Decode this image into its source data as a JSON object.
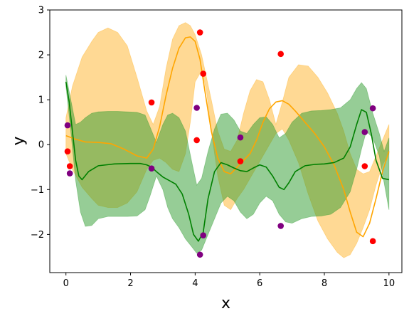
{
  "chart_data": {
    "type": "line",
    "title": "",
    "xlabel": "x",
    "ylabel": "y",
    "xlim": [
      -0.5,
      10.4
    ],
    "ylim": [
      -2.85,
      3.0
    ],
    "xticks": [
      0,
      2,
      4,
      6,
      8,
      10
    ],
    "xtick_labels": [
      "0",
      "2",
      "4",
      "6",
      "8",
      "10"
    ],
    "yticks": [
      -2,
      -1,
      0,
      1,
      2,
      3
    ],
    "ytick_labels": [
      "−2",
      "−1",
      "0",
      "1",
      "2",
      "3"
    ],
    "grid": false,
    "legend": "none",
    "series": [
      {
        "kind": "band",
        "color": "#ffa500",
        "opacity": 0.42,
        "x": [
          0.0,
          0.2,
          0.5,
          0.8,
          1.0,
          1.3,
          1.6,
          1.9,
          2.2,
          2.5,
          2.7,
          2.9,
          3.1,
          3.3,
          3.5,
          3.7,
          3.85,
          4.0,
          4.2,
          4.35,
          4.5,
          4.7,
          4.9,
          5.1,
          5.3,
          5.5,
          5.7,
          5.9,
          6.1,
          6.3,
          6.5,
          6.7,
          6.9,
          7.2,
          7.5,
          7.8,
          8.1,
          8.4,
          8.6,
          8.8,
          9.0,
          9.2,
          9.4,
          9.6,
          9.8,
          10.0
        ],
        "upper": [
          0.6,
          1.3,
          1.95,
          2.3,
          2.5,
          2.6,
          2.5,
          2.2,
          1.5,
          0.75,
          0.45,
          0.85,
          1.7,
          2.35,
          2.65,
          2.72,
          2.65,
          2.45,
          2.0,
          1.5,
          1.0,
          0.3,
          -0.1,
          -0.15,
          0.1,
          0.7,
          1.2,
          1.45,
          1.4,
          1.0,
          0.45,
          0.95,
          1.5,
          1.78,
          1.75,
          1.5,
          1.15,
          0.7,
          0.3,
          -0.2,
          -0.55,
          -0.65,
          -0.6,
          -0.25,
          0.1,
          0.45
        ],
        "lower": [
          -0.2,
          -0.55,
          -0.95,
          -1.2,
          -1.35,
          -1.4,
          -1.4,
          -1.3,
          -1.05,
          -0.55,
          -0.35,
          -0.3,
          -0.4,
          -0.55,
          -0.6,
          -0.2,
          0.5,
          1.4,
          1.65,
          1.2,
          0.3,
          -0.7,
          -1.35,
          -1.45,
          -1.2,
          -1.0,
          -0.75,
          -0.5,
          -0.25,
          0.0,
          0.25,
          0.35,
          0.1,
          -0.4,
          -1.1,
          -1.7,
          -2.1,
          -2.4,
          -2.52,
          -2.45,
          -2.2,
          -1.85,
          -1.45,
          -0.9,
          -0.45,
          -0.2
        ]
      },
      {
        "kind": "band",
        "color": "#2e9b2e",
        "opacity": 0.5,
        "x": [
          0.0,
          0.15,
          0.3,
          0.45,
          0.6,
          0.8,
          1.0,
          1.3,
          1.6,
          1.9,
          2.2,
          2.45,
          2.6,
          2.8,
          3.0,
          3.15,
          3.3,
          3.5,
          3.7,
          3.9,
          4.05,
          4.2,
          4.4,
          4.6,
          4.8,
          5.0,
          5.2,
          5.4,
          5.6,
          5.8,
          6.0,
          6.2,
          6.4,
          6.6,
          6.8,
          7.0,
          7.3,
          7.6,
          7.9,
          8.2,
          8.5,
          8.8,
          9.0,
          9.15,
          9.3,
          9.5,
          9.7,
          9.85,
          10.0
        ],
        "upper": [
          1.55,
          1.0,
          0.45,
          0.5,
          0.6,
          0.7,
          0.73,
          0.74,
          0.74,
          0.73,
          0.72,
          0.66,
          0.4,
          0.05,
          0.45,
          0.66,
          0.7,
          0.6,
          0.3,
          -0.4,
          -0.9,
          -0.75,
          -0.15,
          0.35,
          0.68,
          0.7,
          0.55,
          0.3,
          0.25,
          0.45,
          0.6,
          0.62,
          0.45,
          0.15,
          0.25,
          0.5,
          0.7,
          0.75,
          0.76,
          0.78,
          0.82,
          1.0,
          1.25,
          1.38,
          1.25,
          0.7,
          0.25,
          -0.15,
          0.15
        ],
        "lower": [
          1.3,
          0.3,
          -0.8,
          -1.5,
          -1.82,
          -1.8,
          -1.65,
          -1.6,
          -1.6,
          -1.6,
          -1.59,
          -1.45,
          -1.15,
          -0.7,
          -1.0,
          -1.4,
          -1.65,
          -1.85,
          -2.1,
          -2.28,
          -2.42,
          -2.35,
          -2.0,
          -1.65,
          -1.3,
          -1.15,
          -1.25,
          -1.5,
          -1.65,
          -1.55,
          -1.3,
          -1.15,
          -1.25,
          -1.55,
          -1.72,
          -1.75,
          -1.65,
          -1.6,
          -1.59,
          -1.55,
          -1.4,
          -1.05,
          -0.55,
          -0.1,
          0.3,
          0.15,
          -0.25,
          -0.85,
          -1.45
        ]
      },
      {
        "kind": "line",
        "color": "#ffa500",
        "width": 1.6,
        "x": [
          0.0,
          0.3,
          0.6,
          1.0,
          1.4,
          1.8,
          2.2,
          2.5,
          2.7,
          2.9,
          3.1,
          3.3,
          3.5,
          3.7,
          3.85,
          4.0,
          4.15,
          4.3,
          4.5,
          4.7,
          4.9,
          5.1,
          5.3,
          5.5,
          5.7,
          5.9,
          6.1,
          6.3,
          6.5,
          6.7,
          6.9,
          7.1,
          7.4,
          7.7,
          8.0,
          8.3,
          8.6,
          8.8,
          9.0,
          9.2,
          9.4,
          9.6,
          9.8,
          10.0
        ],
        "y": [
          0.2,
          0.12,
          0.06,
          0.05,
          0.02,
          -0.1,
          -0.25,
          -0.3,
          -0.1,
          0.4,
          1.1,
          1.7,
          2.15,
          2.38,
          2.4,
          2.3,
          1.9,
          1.2,
          0.3,
          -0.3,
          -0.6,
          -0.65,
          -0.5,
          -0.35,
          -0.2,
          0.1,
          0.5,
          0.8,
          0.95,
          0.98,
          0.9,
          0.75,
          0.5,
          0.25,
          -0.05,
          -0.45,
          -1.0,
          -1.5,
          -1.95,
          -2.05,
          -1.75,
          -1.2,
          -0.6,
          -0.15
        ]
      },
      {
        "kind": "line",
        "color": "#008000",
        "width": 1.6,
        "x": [
          0.0,
          0.1,
          0.2,
          0.3,
          0.4,
          0.5,
          0.7,
          1.0,
          1.5,
          2.0,
          2.3,
          2.5,
          2.65,
          2.8,
          3.0,
          3.2,
          3.4,
          3.6,
          3.8,
          3.95,
          4.1,
          4.25,
          4.4,
          4.6,
          4.8,
          5.0,
          5.2,
          5.4,
          5.6,
          5.8,
          6.0,
          6.2,
          6.4,
          6.6,
          6.75,
          6.9,
          7.1,
          7.4,
          7.7,
          8.0,
          8.3,
          8.6,
          8.8,
          9.0,
          9.15,
          9.3,
          9.45,
          9.6,
          9.8,
          10.0
        ],
        "y": [
          1.4,
          0.95,
          0.3,
          -0.35,
          -0.7,
          -0.78,
          -0.6,
          -0.47,
          -0.43,
          -0.42,
          -0.42,
          -0.45,
          -0.5,
          -0.6,
          -0.72,
          -0.8,
          -0.88,
          -1.1,
          -1.55,
          -2.0,
          -2.15,
          -1.95,
          -1.2,
          -0.6,
          -0.4,
          -0.45,
          -0.52,
          -0.58,
          -0.6,
          -0.52,
          -0.45,
          -0.5,
          -0.7,
          -0.95,
          -1.0,
          -0.85,
          -0.6,
          -0.47,
          -0.44,
          -0.43,
          -0.4,
          -0.3,
          -0.05,
          0.45,
          0.78,
          0.72,
          0.25,
          -0.35,
          -0.75,
          -0.78
        ]
      }
    ],
    "scatter": [
      {
        "color": "#ff0000",
        "x": [
          0.05,
          0.12,
          2.65,
          4.05,
          4.15,
          4.25,
          5.4,
          6.65,
          9.25,
          9.5
        ],
        "y": [
          -0.15,
          -0.48,
          0.94,
          0.1,
          2.5,
          1.58,
          -0.37,
          2.02,
          -0.48,
          -2.15
        ]
      },
      {
        "color": "#800080",
        "x": [
          0.05,
          0.12,
          2.65,
          4.05,
          4.15,
          4.25,
          5.4,
          6.65,
          9.25,
          9.5
        ],
        "y": [
          0.43,
          -0.64,
          -0.53,
          0.82,
          -2.45,
          -2.02,
          0.16,
          -1.81,
          0.28,
          0.81
        ]
      }
    ]
  }
}
